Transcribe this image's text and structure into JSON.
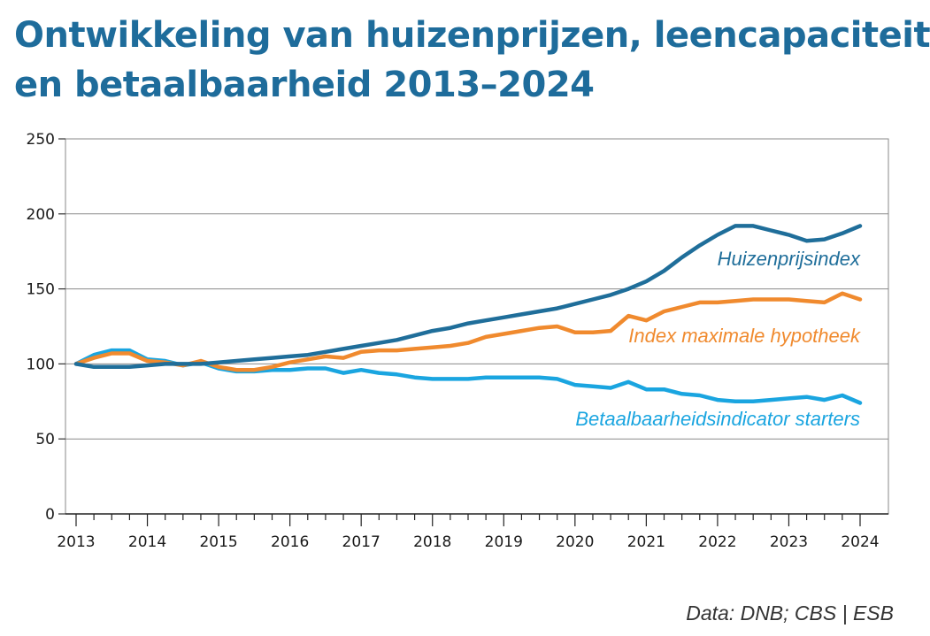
{
  "chart_data": {
    "type": "line",
    "title": "Ontwikkeling van huizenprijzen, leencapaciteit en betaalbaarheid 2013–2024",
    "title_lines": [
      "Ontwikkeling van huizenprijzen, leencapaciteit",
      "en betaalbaarheid 2013–2024"
    ],
    "xlabel": "",
    "ylabel": "",
    "xlim": [
      2013,
      2024
    ],
    "ylim": [
      0,
      250
    ],
    "yticks": [
      0,
      50,
      100,
      150,
      200,
      250
    ],
    "xticks": [
      "2013",
      "2014",
      "2015",
      "2016",
      "2017",
      "2018",
      "2019",
      "2020",
      "2021",
      "2022",
      "2023",
      "2024"
    ],
    "grid": true,
    "source": "Data: DNB; CBS | ESB",
    "series": [
      {
        "name": "Huizenprijsindex",
        "color": "#1f6e9a",
        "x": [
          2013,
          2013.25,
          2013.5,
          2013.75,
          2014,
          2014.25,
          2014.5,
          2014.75,
          2015,
          2015.25,
          2015.5,
          2015.75,
          2016,
          2016.25,
          2016.5,
          2016.75,
          2017,
          2017.25,
          2017.5,
          2017.75,
          2018,
          2018.25,
          2018.5,
          2018.75,
          2019,
          2019.25,
          2019.5,
          2019.75,
          2020,
          2020.25,
          2020.5,
          2020.75,
          2021,
          2021.25,
          2021.5,
          2021.75,
          2022,
          2022.25,
          2022.5,
          2022.75,
          2023,
          2023.25,
          2023.5,
          2023.75,
          2024
        ],
        "values": [
          100,
          98,
          98,
          98,
          99,
          100,
          100,
          100,
          101,
          102,
          103,
          104,
          105,
          106,
          108,
          110,
          112,
          114,
          116,
          119,
          122,
          124,
          127,
          129,
          131,
          133,
          135,
          137,
          140,
          143,
          146,
          150,
          155,
          162,
          171,
          179,
          186,
          192,
          192,
          189,
          186,
          182,
          183,
          187,
          192
        ]
      },
      {
        "name": "Index maximale hypotheek",
        "color": "#f08a2e",
        "x": [
          2013,
          2013.25,
          2013.5,
          2013.75,
          2014,
          2014.25,
          2014.5,
          2014.75,
          2015,
          2015.25,
          2015.5,
          2015.75,
          2016,
          2016.25,
          2016.5,
          2016.75,
          2017,
          2017.25,
          2017.5,
          2017.75,
          2018,
          2018.25,
          2018.5,
          2018.75,
          2019,
          2019.25,
          2019.5,
          2019.75,
          2020,
          2020.25,
          2020.5,
          2020.75,
          2021,
          2021.25,
          2021.5,
          2021.75,
          2022,
          2022.25,
          2022.5,
          2022.75,
          2023,
          2023.25,
          2023.5,
          2023.75,
          2024
        ],
        "values": [
          100,
          104,
          107,
          107,
          102,
          101,
          99,
          102,
          98,
          96,
          96,
          98,
          101,
          103,
          105,
          104,
          108,
          109,
          109,
          110,
          111,
          112,
          114,
          118,
          120,
          122,
          124,
          125,
          121,
          121,
          122,
          132,
          129,
          135,
          138,
          141,
          141,
          142,
          143,
          143,
          143,
          142,
          141,
          147,
          143
        ]
      },
      {
        "name": "Betaalbaarheidsindicator starters",
        "color": "#1aa5e0",
        "x": [
          2013,
          2013.25,
          2013.5,
          2013.75,
          2014,
          2014.25,
          2014.5,
          2014.75,
          2015,
          2015.25,
          2015.5,
          2015.75,
          2016,
          2016.25,
          2016.5,
          2016.75,
          2017,
          2017.25,
          2017.5,
          2017.75,
          2018,
          2018.25,
          2018.5,
          2018.75,
          2019,
          2019.25,
          2019.5,
          2019.75,
          2020,
          2020.25,
          2020.5,
          2020.75,
          2021,
          2021.25,
          2021.5,
          2021.75,
          2022,
          2022.25,
          2022.5,
          2022.75,
          2023,
          2023.25,
          2023.5,
          2023.75,
          2024
        ],
        "values": [
          100,
          106,
          109,
          109,
          103,
          102,
          99,
          101,
          97,
          95,
          95,
          96,
          96,
          97,
          97,
          94,
          96,
          94,
          93,
          91,
          90,
          90,
          90,
          91,
          91,
          91,
          91,
          90,
          86,
          85,
          84,
          88,
          83,
          83,
          80,
          79,
          76,
          75,
          75,
          76,
          77,
          78,
          76,
          79,
          74
        ]
      }
    ]
  }
}
